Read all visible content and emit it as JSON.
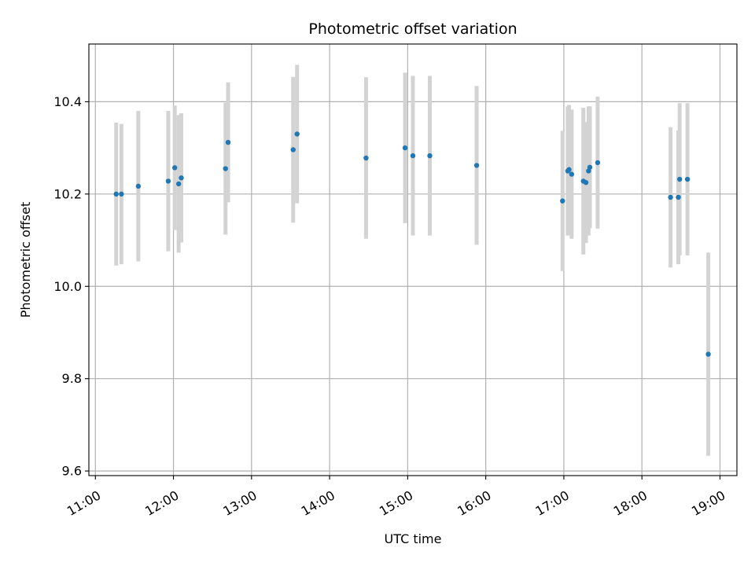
{
  "chart_data": {
    "type": "scatter",
    "title": "Photometric offset variation",
    "xlabel": "UTC time",
    "ylabel": "Photometric offset",
    "grid": true,
    "xlim": [
      "10:55",
      "19:13"
    ],
    "ylim": [
      9.59,
      10.525
    ],
    "x_ticks": [
      "11:00",
      "12:00",
      "13:00",
      "14:00",
      "15:00",
      "16:00",
      "17:00",
      "18:00",
      "19:00"
    ],
    "y_ticks": [
      9.6,
      9.8,
      10.0,
      10.2,
      10.4
    ],
    "y_tick_labels": [
      "9.6",
      "9.8",
      "10.0",
      "10.2",
      "10.4"
    ],
    "colors": {
      "points": "#1f77b4",
      "errorbars": "#d3d3d3",
      "grid": "#b0b0b0"
    },
    "series": [
      {
        "x": [
          "11:16",
          "11:20",
          "11:33",
          "11:56",
          "12:01",
          "12:04",
          "12:06",
          "12:40",
          "12:42",
          "13:32",
          "13:35",
          "14:28",
          "14:58",
          "15:04",
          "15:17",
          "15:53",
          "16:59",
          "17:03",
          "17:04",
          "17:06",
          "17:15",
          "17:17",
          "17:19",
          "17:20",
          "17:26",
          "18:22",
          "18:28",
          "18:29",
          "18:35",
          "18:51"
        ],
        "y": [
          10.2,
          10.2,
          10.217,
          10.228,
          10.257,
          10.222,
          10.235,
          10.255,
          10.312,
          10.296,
          10.33,
          10.278,
          10.3,
          10.283,
          10.283,
          10.262,
          10.185,
          10.25,
          10.253,
          10.243,
          10.228,
          10.225,
          10.25,
          10.258,
          10.268,
          10.193,
          10.193,
          10.232,
          10.232,
          9.853
        ],
        "err": [
          0.155,
          0.152,
          0.163,
          0.152,
          0.135,
          0.149,
          0.14,
          0.143,
          0.13,
          0.158,
          0.15,
          0.175,
          0.163,
          0.173,
          0.173,
          0.172,
          0.152,
          0.14,
          0.14,
          0.14,
          0.159,
          0.131,
          0.14,
          0.132,
          0.143,
          0.152,
          0.145,
          0.165,
          0.165,
          0.22
        ]
      }
    ]
  }
}
